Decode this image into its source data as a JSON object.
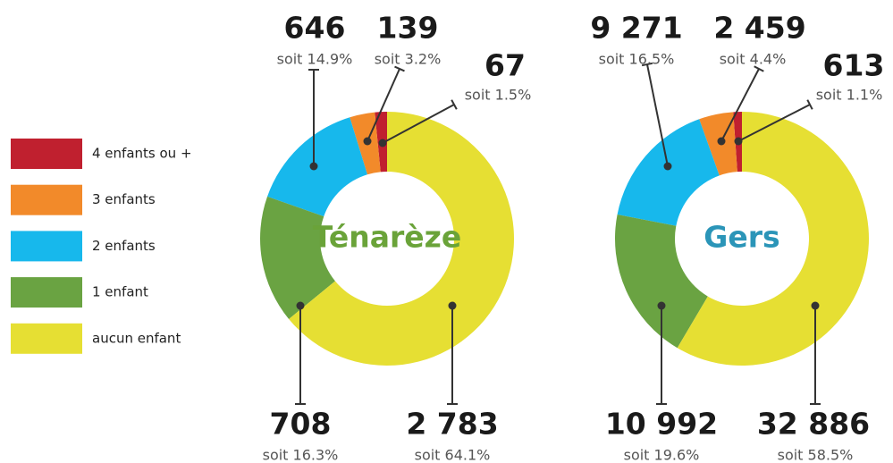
{
  "chart_data": [
    {
      "type": "donut",
      "title": "Ténarèze",
      "title_color": "#6aa339",
      "categories": [
        "4 enfants ou +",
        "3 enfants",
        "2 enfants",
        "1 enfant",
        "aucun enfant"
      ],
      "colors": [
        "#c0202f",
        "#f28a2a",
        "#17b8ec",
        "#6aa342",
        "#e6df33"
      ],
      "values": [
        67,
        139,
        646,
        708,
        2783
      ],
      "value_labels": [
        "67",
        "139",
        "646",
        "708",
        "2 783"
      ],
      "share_labels": [
        "soit 1.5%",
        "soit 3.2%",
        "soit 14.9%",
        "soit 16.3%",
        "soit 64.1%"
      ]
    },
    {
      "type": "donut",
      "title": "Gers",
      "title_color": "#2b95b8",
      "categories": [
        "4 enfants ou +",
        "3 enfants",
        "2 enfants",
        "1 enfant",
        "aucun enfant"
      ],
      "colors": [
        "#c0202f",
        "#f28a2a",
        "#17b8ec",
        "#6aa342",
        "#e6df33"
      ],
      "values": [
        613,
        2459,
        9271,
        10992,
        32886
      ],
      "value_labels": [
        "613",
        "2 459",
        "9 271",
        "10 992",
        "32 886"
      ],
      "share_labels": [
        "soit 1.1%",
        "soit 4.4%",
        "soit 16.5%",
        "soit 19.6%",
        "soit 58.5%"
      ]
    }
  ]
}
